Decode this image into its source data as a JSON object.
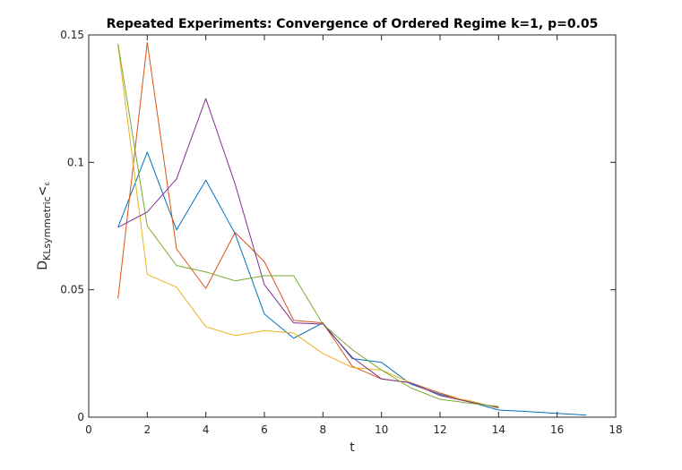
{
  "chart_data": {
    "type": "line",
    "title": "Repeated Experiments: Convergence of Ordered Regime k=1, p=0.05",
    "xlabel": "t",
    "ylabel": {
      "main": "D",
      "sub": "KLsymmetric",
      "tail": "<",
      "tail_sub": "ε"
    },
    "xlim": [
      0,
      18
    ],
    "ylim": [
      0,
      0.15
    ],
    "xticks": [
      0,
      2,
      4,
      6,
      8,
      10,
      12,
      14,
      16,
      18
    ],
    "xtick_labels": [
      "0",
      "2",
      "4",
      "6",
      "8",
      "10",
      "12",
      "14",
      "16",
      "18"
    ],
    "yticks": [
      0,
      0.05,
      0.1,
      0.15
    ],
    "ytick_labels": [
      "0",
      "0.05",
      "0.1",
      "0.15"
    ],
    "grid": false,
    "series": [
      {
        "color": "#0072BD",
        "x": [
          1,
          2,
          3,
          4,
          5,
          6,
          7,
          8,
          9,
          10,
          11,
          12,
          13,
          14,
          15,
          16,
          17
        ],
        "y": [
          0.0745,
          0.104,
          0.0735,
          0.093,
          0.072,
          0.0405,
          0.031,
          0.037,
          0.023,
          0.0215,
          0.013,
          0.009,
          0.006,
          0.0028,
          0.0022,
          0.0015,
          0.0008
        ]
      },
      {
        "color": "#D95319",
        "x": [
          1,
          2,
          3,
          4,
          5,
          6,
          7,
          8,
          9,
          10,
          11,
          12,
          13,
          14
        ],
        "y": [
          0.0465,
          0.147,
          0.066,
          0.0505,
          0.0725,
          0.061,
          0.038,
          0.037,
          0.02,
          0.015,
          0.0135,
          0.0095,
          0.006,
          0.0038
        ]
      },
      {
        "color": "#EDB120",
        "x": [
          1,
          2,
          3,
          4,
          5,
          6,
          7,
          8,
          9,
          10,
          11,
          12,
          13,
          14
        ],
        "y": [
          0.146,
          0.056,
          0.051,
          0.0355,
          0.032,
          0.034,
          0.033,
          0.025,
          0.0195,
          0.0185,
          0.0135,
          0.0085,
          0.0065,
          0.0035
        ]
      },
      {
        "color": "#7E2F8E",
        "x": [
          1,
          2,
          3,
          4,
          5,
          6,
          7,
          8,
          9,
          10,
          11,
          12,
          13,
          14
        ],
        "y": [
          0.0745,
          0.0805,
          0.0935,
          0.125,
          0.0915,
          0.052,
          0.037,
          0.0365,
          0.0235,
          0.015,
          0.0135,
          0.0085,
          0.006,
          0.0038
        ]
      },
      {
        "color": "#77AC30",
        "x": [
          1,
          2,
          3,
          4,
          5,
          6,
          7,
          8,
          9,
          10,
          11,
          12,
          13,
          14
        ],
        "y": [
          0.1465,
          0.075,
          0.0595,
          0.057,
          0.0535,
          0.0555,
          0.0555,
          0.0365,
          0.0265,
          0.0185,
          0.0115,
          0.007,
          0.0055,
          0.0042
        ]
      }
    ]
  }
}
